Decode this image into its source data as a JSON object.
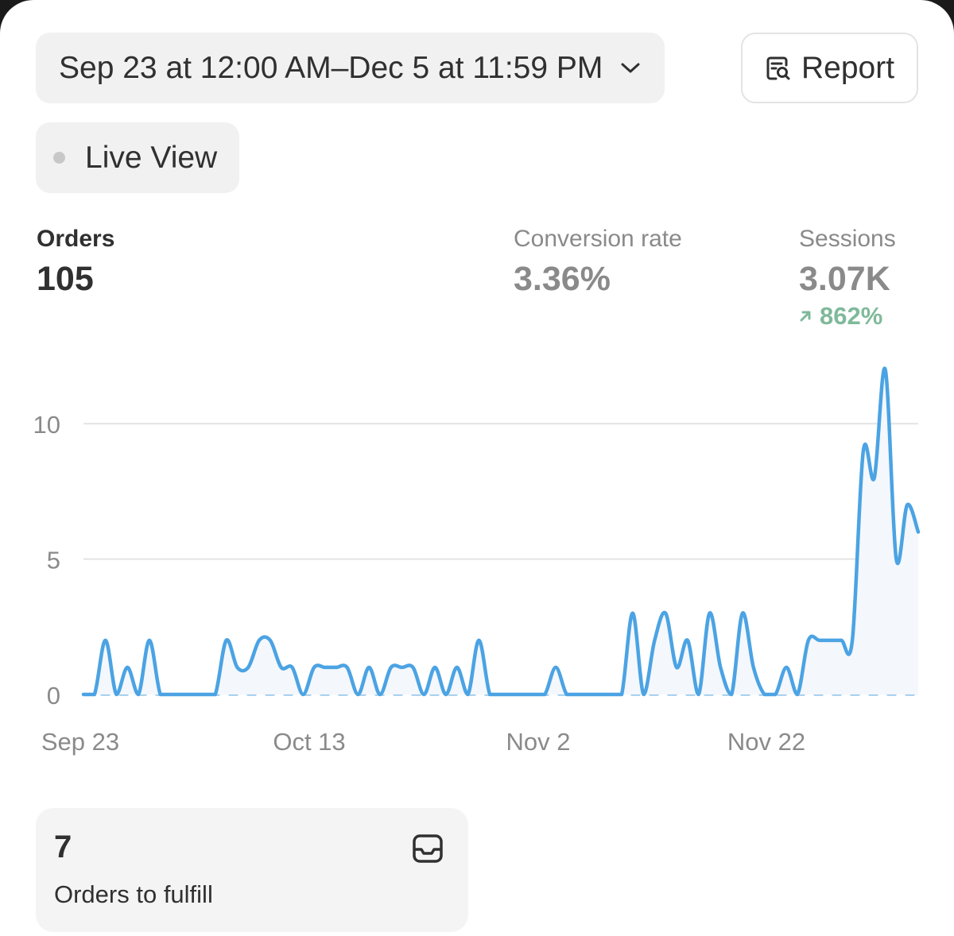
{
  "header": {
    "date_range": "Sep 23 at 12:00 AM–Dec 5 at 11:59 PM",
    "date_icon": "chevron-down-icon",
    "report_label": "Report",
    "report_icon": "report-search-icon"
  },
  "live_view": {
    "label": "Live View",
    "indicator_color": "#c8c8c8"
  },
  "metrics": {
    "orders": {
      "label": "Orders",
      "value": "105"
    },
    "conversion": {
      "label": "Conversion rate",
      "value": "3.36%"
    },
    "sessions": {
      "label": "Sessions",
      "value": "3.07K",
      "change": "862%",
      "change_icon": "arrow-up-right-icon",
      "change_color": "#7fb99a"
    }
  },
  "chart_data": {
    "type": "line",
    "x_start": "Sep 23",
    "x_end": "Dec 5",
    "xtick_labels": [
      "Sep 23",
      "Oct 13",
      "Nov 2",
      "Nov 22"
    ],
    "ytick_labels": [
      "0",
      "5",
      "10"
    ],
    "ylim": [
      0,
      12
    ],
    "grid": true,
    "series": [
      {
        "color": "#4ba3e3",
        "values": [
          0,
          0,
          2,
          0,
          1,
          0,
          2,
          0,
          0,
          0,
          0,
          0,
          0,
          2,
          1,
          1,
          2,
          2,
          1,
          1,
          0,
          1,
          1,
          1,
          1,
          0,
          1,
          0,
          1,
          1,
          1,
          0,
          1,
          0,
          1,
          0,
          2,
          0,
          0,
          0,
          0,
          0,
          0,
          1,
          0,
          0,
          0,
          0,
          0,
          0,
          3,
          0,
          2,
          3,
          1,
          2,
          0,
          3,
          1,
          0,
          3,
          1,
          0,
          0,
          1,
          0,
          2,
          2,
          2,
          2,
          2,
          9,
          8,
          12,
          5,
          7,
          6
        ]
      },
      {
        "style": "dashed",
        "color": "#9cc9ea",
        "values": [
          0,
          0
        ]
      }
    ]
  },
  "fulfill_card": {
    "count": "7",
    "label": "Orders to fulfill",
    "icon": "inbox-icon"
  }
}
